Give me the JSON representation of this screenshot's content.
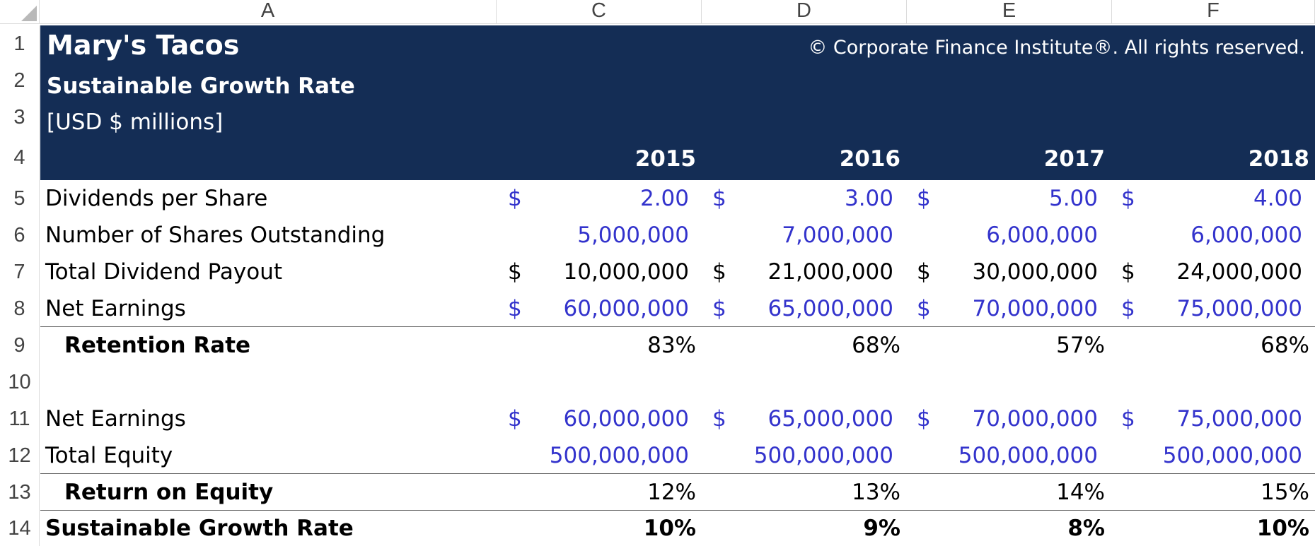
{
  "columns": [
    "A",
    "C",
    "D",
    "E",
    "F"
  ],
  "rows": [
    "1",
    "2",
    "3",
    "4",
    "5",
    "6",
    "7",
    "8",
    "9",
    "10",
    "11",
    "12",
    "13",
    "14"
  ],
  "header": {
    "title": "Mary's Tacos",
    "subtitle": "Sustainable Growth Rate",
    "units": "[USD $ millions]",
    "copyright": "© Corporate Finance Institute®. All rights reserved.",
    "years": [
      "2015",
      "2016",
      "2017",
      "2018"
    ]
  },
  "colors": {
    "banner": "#142d55",
    "input_text": "#3333cc",
    "calc_text": "#000000"
  },
  "table": {
    "dividends_per_share": {
      "label": "Dividends per Share",
      "currency": "$",
      "values": [
        "2.00",
        "3.00",
        "5.00",
        "4.00"
      ]
    },
    "shares_outstanding": {
      "label": "Number of Shares Outstanding",
      "values": [
        "5,000,000",
        "7,000,000",
        "6,000,000",
        "6,000,000"
      ]
    },
    "total_dividend_payout": {
      "label": "Total Dividend Payout",
      "currency": "$",
      "values": [
        "10,000,000",
        "21,000,000",
        "30,000,000",
        "24,000,000"
      ]
    },
    "net_earnings": {
      "label": "Net Earnings",
      "currency": "$",
      "values": [
        "60,000,000",
        "65,000,000",
        "70,000,000",
        "75,000,000"
      ]
    },
    "retention_rate": {
      "label": "Retention Rate",
      "values": [
        "83%",
        "68%",
        "57%",
        "68%"
      ]
    },
    "net_earnings_2": {
      "label": "Net Earnings",
      "currency": "$",
      "values": [
        "60,000,000",
        "65,000,000",
        "70,000,000",
        "75,000,000"
      ]
    },
    "total_equity": {
      "label": "Total Equity",
      "values": [
        "500,000,000",
        "500,000,000",
        "500,000,000",
        "500,000,000"
      ]
    },
    "return_on_equity": {
      "label": "Return on Equity",
      "values": [
        "12%",
        "13%",
        "14%",
        "15%"
      ]
    },
    "sustainable_growth_rate": {
      "label": "Sustainable Growth Rate",
      "values": [
        "10%",
        "9%",
        "8%",
        "10%"
      ]
    }
  }
}
